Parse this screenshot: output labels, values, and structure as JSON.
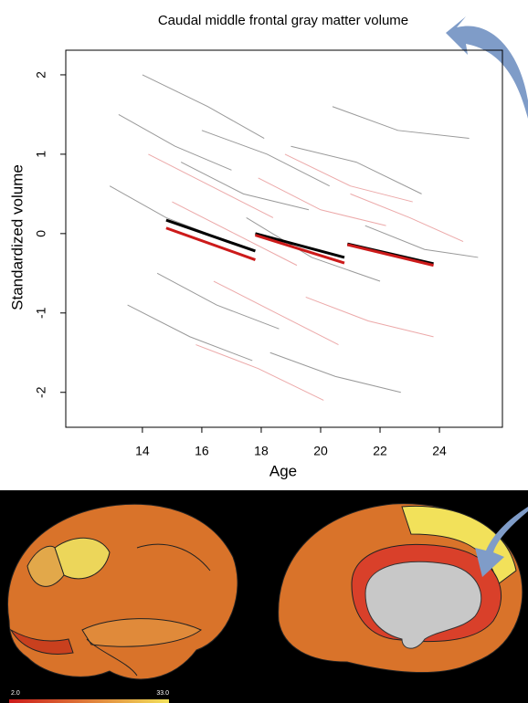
{
  "chart_data": {
    "type": "line",
    "title": "Caudal middle frontal gray matter volume",
    "x_label": "Age",
    "y_label": "Standardized volume",
    "xlim": [
      11.42,
      26.12
    ],
    "ylim": [
      -2.44,
      2.31
    ],
    "xticks": [
      14,
      16,
      18,
      20,
      22,
      24
    ],
    "yticks": [
      -2,
      -1,
      0,
      1,
      2
    ],
    "series": [
      {
        "color": "#000000",
        "x": [
          14.8,
          17.8
        ],
        "values": [
          0.17,
          -0.22
        ]
      },
      {
        "color": "#000000",
        "x": [
          17.8,
          20.8
        ],
        "values": [
          0.0,
          -0.3
        ]
      },
      {
        "color": "#000000",
        "x": [
          20.9,
          23.8
        ],
        "values": [
          -0.13,
          -0.38
        ]
      },
      {
        "color": "#cc1a1a",
        "x": [
          14.8,
          17.8
        ],
        "values": [
          0.07,
          -0.33
        ]
      },
      {
        "color": "#cc1a1a",
        "x": [
          17.8,
          20.8
        ],
        "values": [
          -0.02,
          -0.37
        ]
      },
      {
        "color": "#cc1a1a",
        "x": [
          20.9,
          23.8
        ],
        "values": [
          -0.14,
          -0.4
        ]
      }
    ],
    "trajectories": [
      {
        "color": "#555555",
        "x": [
          13.2,
          15.1,
          17.0
        ],
        "values": [
          1.5,
          1.1,
          0.8
        ]
      },
      {
        "color": "#555555",
        "x": [
          14.0,
          16.2,
          18.1
        ],
        "values": [
          2.0,
          1.6,
          1.2
        ]
      },
      {
        "color": "#555555",
        "x": [
          15.3,
          17.4,
          19.6
        ],
        "values": [
          0.9,
          0.5,
          0.3
        ]
      },
      {
        "color": "#555555",
        "x": [
          12.9,
          14.8,
          16.9
        ],
        "values": [
          0.6,
          0.2,
          -0.1
        ]
      },
      {
        "color": "#555555",
        "x": [
          16.0,
          18.2,
          20.3
        ],
        "values": [
          1.3,
          1.0,
          0.6
        ]
      },
      {
        "color": "#555555",
        "x": [
          17.5,
          19.7,
          22.0
        ],
        "values": [
          0.2,
          -0.3,
          -0.6
        ]
      },
      {
        "color": "#555555",
        "x": [
          19.0,
          21.2,
          23.4
        ],
        "values": [
          1.1,
          0.9,
          0.5
        ]
      },
      {
        "color": "#555555",
        "x": [
          20.4,
          22.6,
          25.0
        ],
        "values": [
          1.6,
          1.3,
          1.2
        ]
      },
      {
        "color": "#555555",
        "x": [
          14.5,
          16.5,
          18.6
        ],
        "values": [
          -0.5,
          -0.9,
          -1.2
        ]
      },
      {
        "color": "#555555",
        "x": [
          18.3,
          20.5,
          22.7
        ],
        "values": [
          -1.5,
          -1.8,
          -2.0
        ]
      },
      {
        "color": "#555555",
        "x": [
          21.5,
          23.5,
          25.3
        ],
        "values": [
          0.1,
          -0.2,
          -0.3
        ]
      },
      {
        "color": "#555555",
        "x": [
          13.5,
          15.6,
          17.7
        ],
        "values": [
          -0.9,
          -1.3,
          -1.6
        ]
      },
      {
        "color": "#e07070",
        "x": [
          15.0,
          17.1,
          19.2
        ],
        "values": [
          0.4,
          0.0,
          -0.4
        ]
      },
      {
        "color": "#e07070",
        "x": [
          17.9,
          20.0,
          22.2
        ],
        "values": [
          0.7,
          0.3,
          0.1
        ]
      },
      {
        "color": "#e07070",
        "x": [
          16.4,
          18.5,
          20.6
        ],
        "values": [
          -0.6,
          -1.0,
          -1.4
        ]
      },
      {
        "color": "#e07070",
        "x": [
          19.5,
          21.6,
          23.8
        ],
        "values": [
          -0.8,
          -1.1,
          -1.3
        ]
      },
      {
        "color": "#e07070",
        "x": [
          21.0,
          23.0,
          24.8
        ],
        "values": [
          0.5,
          0.2,
          -0.1
        ]
      },
      {
        "color": "#e07070",
        "x": [
          15.8,
          17.9,
          20.1
        ],
        "values": [
          -1.4,
          -1.7,
          -2.1
        ]
      },
      {
        "color": "#e07070",
        "x": [
          18.8,
          21.0,
          23.1
        ],
        "values": [
          1.0,
          0.6,
          0.4
        ]
      },
      {
        "color": "#e07070",
        "x": [
          14.2,
          16.3,
          18.4
        ],
        "values": [
          1.0,
          0.6,
          0.2
        ]
      }
    ],
    "colorbar": {
      "labels": [
        "2.0",
        "33.0"
      ],
      "colors": [
        "#cc1a1a",
        "#f2e15a"
      ]
    }
  }
}
